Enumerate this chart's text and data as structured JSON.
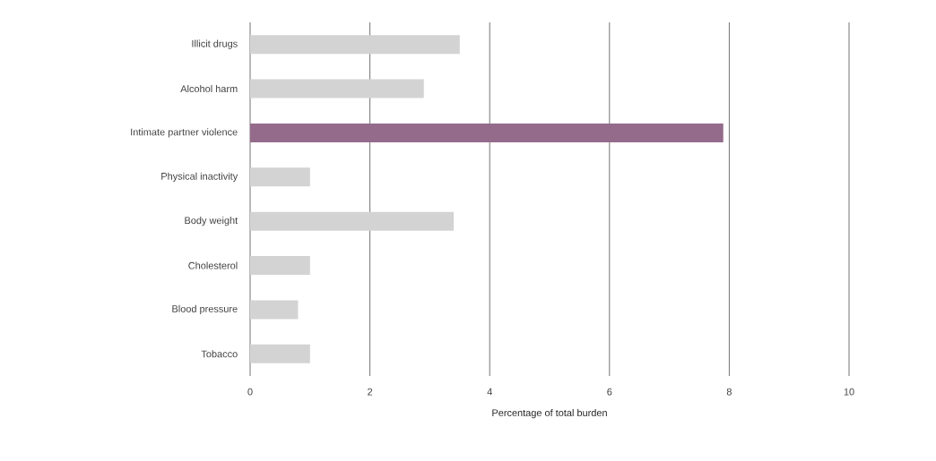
{
  "chart_data": {
    "type": "bar",
    "orientation": "horizontal",
    "xlabel": "Percentage of total burden",
    "categories": [
      "Illicit drugs",
      "Alcohol harm",
      "Intimate partner violence",
      "Physical inactivity",
      "Body weight",
      "Cholesterol",
      "Blood pressure",
      "Tobacco"
    ],
    "values": [
      3.5,
      2.9,
      7.9,
      1.0,
      3.4,
      1.0,
      0.8,
      1.0
    ],
    "colors": [
      "#d3d3d3",
      "#d3d3d3",
      "#946b8a",
      "#d3d3d3",
      "#d3d3d3",
      "#d3d3d3",
      "#d3d3d3",
      "#d3d3d3"
    ],
    "xlim": [
      0,
      10
    ],
    "xticks": [
      0,
      2,
      4,
      6,
      8,
      10
    ],
    "grid": "x"
  }
}
